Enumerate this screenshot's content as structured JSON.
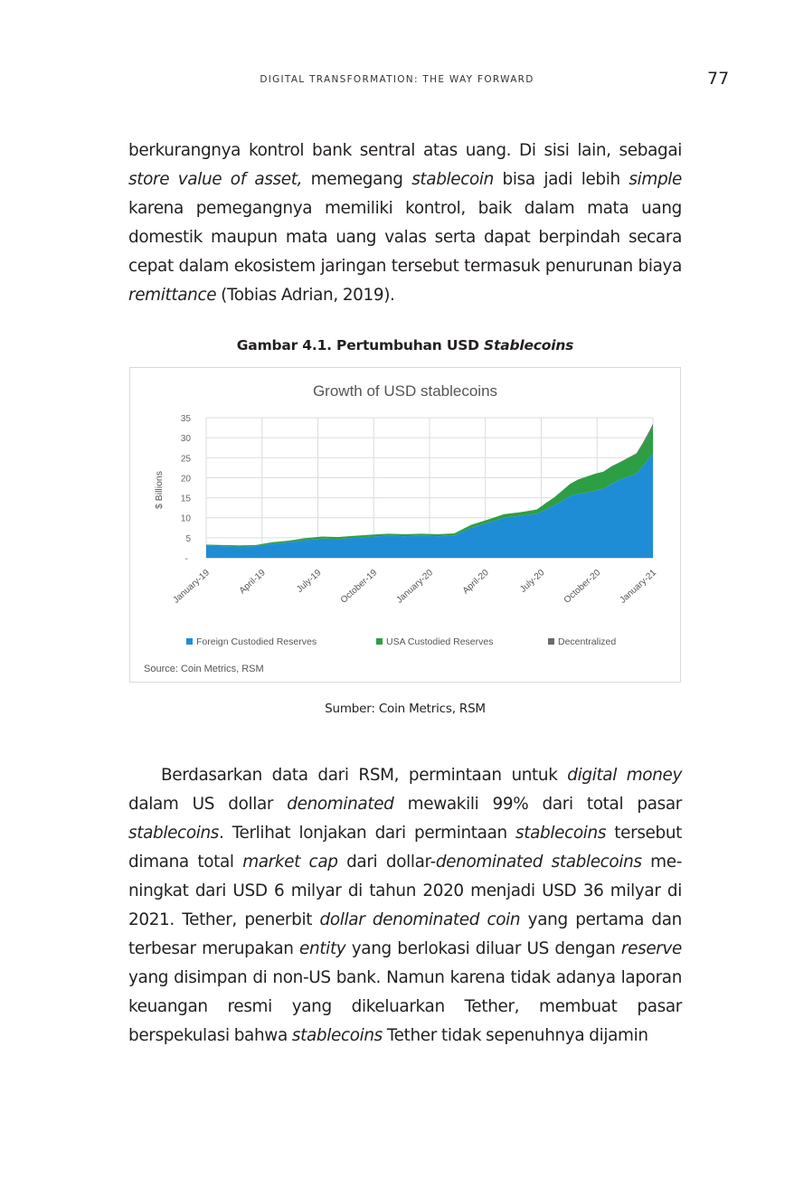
{
  "header": {
    "running_title": "DIGITAL TRANSFORMATION: THE WAY FORWARD",
    "page_number": "77"
  },
  "paragraph1": [
    {
      "t": "berkurangnya kontrol bank sentral atas uang. Di sisi lain, sebagai "
    },
    {
      "t": "store value of asset,",
      "i": true
    },
    {
      "t": " memegang "
    },
    {
      "t": "stablecoin",
      "i": true
    },
    {
      "t": " bisa jadi lebih "
    },
    {
      "t": "simple",
      "i": true
    },
    {
      "t": " karena pemegangnya memiliki kontrol, baik dalam mata uang domestik maupun mata uang valas serta dapat berpindah secara cepat dalam ekosistem jaringan tersebut termasuk penurunan biaya "
    },
    {
      "t": "remittance",
      "i": true
    },
    {
      "t": " (Tobias Adrian, 2019)."
    }
  ],
  "figure": {
    "caption_prefix": "Gambar 4.1. Pertumbuhan USD ",
    "caption_italic": "Stablecoins",
    "source_note": "Sumber: Coin Metrics, RSM"
  },
  "chart_data": {
    "type": "area",
    "title": "Growth of USD stablecoins",
    "ylabel": "$ Billions",
    "xlabel": "",
    "ylim": [
      0,
      35
    ],
    "yticks": [
      35,
      30,
      25,
      20,
      15,
      10,
      5
    ],
    "y_zero_label": "-",
    "x_tick_labels": [
      "January-19",
      "April-19",
      "July-19",
      "October-19",
      "January-20",
      "April-20",
      "July-20",
      "October-20",
      "January-21"
    ],
    "x_index_range": [
      0,
      27
    ],
    "grid": true,
    "legend_position": "bottom",
    "stacked": true,
    "source": "Source: Coin Metrics, RSM",
    "series": [
      {
        "name": "Foreign Custodied Reserves",
        "color": "#1f8dd6",
        "x": [
          0,
          1,
          2,
          3,
          4,
          5,
          6,
          7,
          8,
          9,
          10,
          11,
          12,
          13,
          14,
          15,
          16,
          17,
          18,
          19,
          19.6,
          20,
          20.5,
          21,
          21.5,
          22,
          22.5,
          23,
          23.5,
          24,
          24.5,
          25,
          25.5,
          26,
          26.4,
          26.8,
          27
        ],
        "values": [
          3,
          2.9,
          2.8,
          2.9,
          3.5,
          3.9,
          4.4,
          4.8,
          4.7,
          5,
          5.3,
          5.5,
          5.4,
          5.5,
          5.4,
          5.6,
          7.5,
          8.7,
          10,
          10.5,
          10.8,
          11,
          12,
          13,
          14.2,
          15.5,
          16,
          16.3,
          16.8,
          17.2,
          18.5,
          19.5,
          20.3,
          21,
          23,
          25,
          26
        ]
      },
      {
        "name": "USA Custodied Reserves",
        "color": "#2e9e44",
        "x": [
          0,
          1,
          2,
          3,
          4,
          5,
          6,
          7,
          8,
          9,
          10,
          11,
          12,
          13,
          14,
          15,
          16,
          17,
          18,
          19,
          19.6,
          20,
          20.5,
          21,
          21.5,
          22,
          22.5,
          23,
          23.5,
          24,
          24.5,
          25,
          25.5,
          26,
          26.4,
          26.8,
          27
        ],
        "values": [
          0.3,
          0.3,
          0.3,
          0.3,
          0.4,
          0.4,
          0.5,
          0.5,
          0.5,
          0.5,
          0.5,
          0.5,
          0.5,
          0.5,
          0.5,
          0.5,
          0.7,
          0.8,
          0.9,
          0.9,
          1,
          1.1,
          1.6,
          2,
          2.5,
          3,
          3.6,
          4,
          4.2,
          4.3,
          4.3,
          4.3,
          4.6,
          4.9,
          5.5,
          6.3,
          6.8
        ]
      },
      {
        "name": "Decentralized",
        "color": "#6b6b6b",
        "x": [
          0,
          1,
          2,
          3,
          4,
          5,
          6,
          7,
          8,
          9,
          10,
          11,
          12,
          13,
          14,
          15,
          16,
          17,
          18,
          19,
          19.6,
          20,
          20.5,
          21,
          21.5,
          22,
          22.5,
          23,
          23.5,
          24,
          24.5,
          25,
          25.5,
          26,
          26.4,
          26.8,
          27
        ],
        "values": [
          0,
          0,
          0,
          0,
          0,
          0,
          0,
          0,
          0,
          0,
          0,
          0,
          0,
          0,
          0,
          0,
          0,
          0,
          0,
          0,
          0,
          0,
          0,
          0,
          0,
          0,
          0,
          0,
          0,
          0,
          0.1,
          0.1,
          0.1,
          0.2,
          0.3,
          0.5,
          0.7
        ]
      }
    ]
  },
  "paragraph2": [
    {
      "t": "Berdasarkan data dari RSM, permintaan untuk "
    },
    {
      "t": "digital money",
      "i": true
    },
    {
      "t": " dalam US dollar "
    },
    {
      "t": "denominated",
      "i": true
    },
    {
      "t": " mewakili 99% dari total pasar "
    },
    {
      "t": "stablecoins",
      "i": true
    },
    {
      "t": ". Terlihat lonjakan dari permintaan "
    },
    {
      "t": "stablecoins",
      "i": true
    },
    {
      "t": " tersebut dimana total "
    },
    {
      "t": "market cap",
      "i": true
    },
    {
      "t": " dari dollar-"
    },
    {
      "t": "denominated stablecoins",
      "i": true
    },
    {
      "t": " me- ningkat dari USD 6 milyar di tahun 2020 menjadi USD 36 milyar di 2021. Tether, penerbit "
    },
    {
      "t": "dollar denominated coin",
      "i": true
    },
    {
      "t": " yang pertama dan terbesar merupakan "
    },
    {
      "t": "entity",
      "i": true
    },
    {
      "t": " yang berlokasi diluar US dengan "
    },
    {
      "t": "reserve",
      "i": true
    },
    {
      "t": " yang disimpan di non-US bank. Namun karena tidak adanya laporan keuangan resmi yang dikeluarkan Tether, membuat pasar berspekulasi bahwa "
    },
    {
      "t": "stablecoins",
      "i": true
    },
    {
      "t": " Tether tidak sepenuhnya dijamin"
    }
  ]
}
